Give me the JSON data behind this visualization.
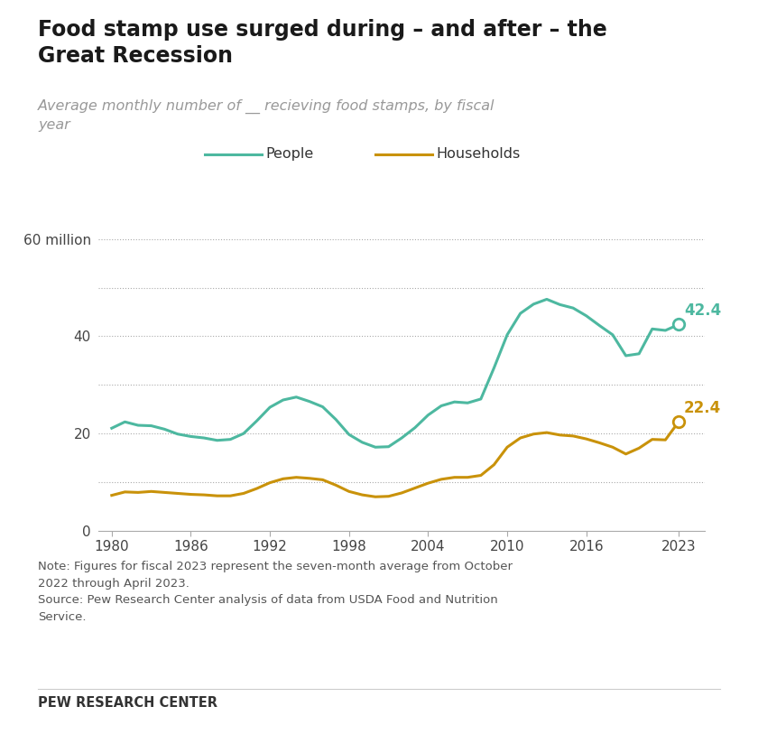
{
  "title": "Food stamp use surged during – and after – the\nGreat Recession",
  "subtitle": "Average monthly number of __ recieving food stamps, by fiscal\nyear",
  "people_years": [
    1980,
    1981,
    1982,
    1983,
    1984,
    1985,
    1986,
    1987,
    1988,
    1989,
    1990,
    1991,
    1992,
    1993,
    1994,
    1995,
    1996,
    1997,
    1998,
    1999,
    2000,
    2001,
    2002,
    2003,
    2004,
    2005,
    2006,
    2007,
    2008,
    2009,
    2010,
    2011,
    2012,
    2013,
    2014,
    2015,
    2016,
    2017,
    2018,
    2019,
    2020,
    2021,
    2022,
    2023
  ],
  "people_values": [
    21.1,
    22.4,
    21.7,
    21.6,
    20.9,
    19.9,
    19.4,
    19.1,
    18.6,
    18.8,
    20.0,
    22.6,
    25.4,
    26.9,
    27.5,
    26.6,
    25.5,
    22.9,
    19.8,
    18.2,
    17.2,
    17.3,
    19.1,
    21.2,
    23.8,
    25.7,
    26.5,
    26.3,
    27.1,
    33.5,
    40.3,
    44.7,
    46.6,
    47.6,
    46.5,
    45.8,
    44.2,
    42.2,
    40.3,
    36.0,
    36.4,
    41.5,
    41.2,
    42.4
  ],
  "households_years": [
    1980,
    1981,
    1982,
    1983,
    1984,
    1985,
    1986,
    1987,
    1988,
    1989,
    1990,
    1991,
    1992,
    1993,
    1994,
    1995,
    1996,
    1997,
    1998,
    1999,
    2000,
    2001,
    2002,
    2003,
    2004,
    2005,
    2006,
    2007,
    2008,
    2009,
    2010,
    2011,
    2012,
    2013,
    2014,
    2015,
    2016,
    2017,
    2018,
    2019,
    2020,
    2021,
    2022,
    2023
  ],
  "households_values": [
    7.3,
    8.0,
    7.9,
    8.1,
    7.9,
    7.7,
    7.5,
    7.4,
    7.2,
    7.2,
    7.7,
    8.7,
    9.9,
    10.7,
    11.0,
    10.8,
    10.5,
    9.4,
    8.1,
    7.4,
    7.0,
    7.1,
    7.8,
    8.8,
    9.8,
    10.6,
    11.0,
    11.0,
    11.4,
    13.6,
    17.2,
    19.1,
    19.9,
    20.2,
    19.7,
    19.5,
    18.9,
    18.1,
    17.2,
    15.8,
    17.0,
    18.8,
    18.7,
    22.4
  ],
  "people_color": "#4db8a0",
  "households_color": "#c9920a",
  "people_label": "People",
  "households_label": "Households",
  "people_end_label": "42.4",
  "households_end_label": "22.4",
  "yticks": [
    0,
    10,
    20,
    30,
    40,
    50,
    60
  ],
  "ytick_labels": [
    "0",
    "",
    "20",
    "",
    "40",
    "",
    "60 million"
  ],
  "xticks": [
    1980,
    1986,
    1992,
    1998,
    2004,
    2010,
    2016,
    2023
  ],
  "ylim": [
    0,
    65
  ],
  "xlim": [
    1979,
    2025
  ],
  "note_text": "Note: Figures for fiscal 2023 represent the seven-month average from October\n2022 through April 2023.\nSource: Pew Research Center analysis of data from USDA Food and Nutrition\nService.",
  "footer_text": "PEW RESEARCH CENTER",
  "background_color": "#ffffff",
  "grid_color": "#aaaaaa",
  "dotted_levels": [
    10,
    20,
    30,
    40,
    50,
    60
  ]
}
